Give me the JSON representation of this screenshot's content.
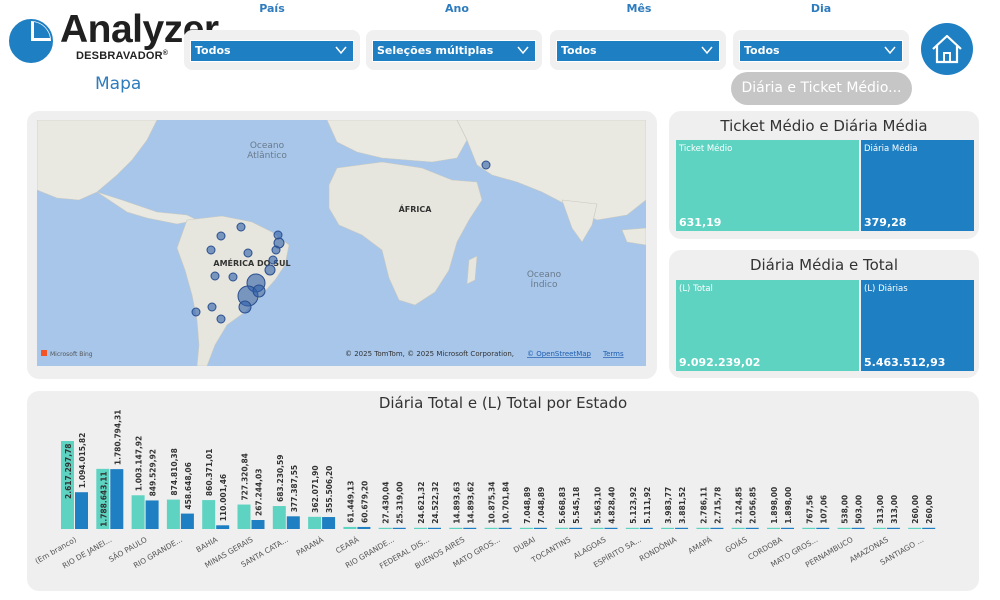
{
  "logo": {
    "title": "Analyzer",
    "subtitle": "DESBRAVADOR",
    "registered": "®"
  },
  "page": {
    "title": "Mapa"
  },
  "filters": [
    {
      "label": "País",
      "value": "Todos"
    },
    {
      "label": "Ano",
      "value": "Seleções múltiplas"
    },
    {
      "label": "Mês",
      "value": "Todos"
    },
    {
      "label": "Dia",
      "value": "Todos"
    }
  ],
  "nav": {
    "pill_label": "Diária e Ticket Médio..."
  },
  "map": {
    "labels": {
      "atlantic": "Oceano\nAtlântico",
      "africa": "ÁFRICA",
      "south_america": "AMÉRICA DO SUL",
      "indian": "Oceano\nÍndico"
    },
    "bing": "Microsoft Bing",
    "copyright": "© 2025 TomTom, © 2025 Microsoft Corporation,",
    "osm": "© OpenStreetMap",
    "terms": "Terms"
  },
  "ticket_card": {
    "title": "Ticket Médio e Diária Média",
    "tiles": [
      {
        "label": "Ticket Médio",
        "value": "631,19"
      },
      {
        "label": "Diária Média",
        "value": "379,28"
      }
    ]
  },
  "total_card": {
    "title": "Diária Média e Total",
    "tiles": [
      {
        "label": "(L) Total",
        "value": "9.092.239,02"
      },
      {
        "label": "(L) Diárias",
        "value": "5.463.512,93"
      }
    ]
  },
  "colors": {
    "accent": "#1e7fc3",
    "teal": "#5fd3c2",
    "panel": "#efefef"
  },
  "chart_data": {
    "type": "bar",
    "title": "Diária Total e (L) Total por Estado",
    "categories": [
      "(Em branco)",
      "RIO DE JANEI...",
      "SÃO PAULO",
      "RIO GRANDE...",
      "BAHIA",
      "MINAS GERAIS",
      "SANTA CATA...",
      "PARANÁ",
      "CEARÁ",
      "RIO GRANDE...",
      "FEDERAL DIS...",
      "BUENOS AIRES",
      "MATO GROS...",
      "DUBAI",
      "TOCANTINS",
      "ALAGOAS",
      "ESPÍRITO SA...",
      "RONDÔNIA",
      "AMAPÁ",
      "GOIÁS",
      "CORDOBA",
      "MATO GROS...",
      "PERNAMBUCO",
      "AMAZONAS",
      "SANTIAGO ..."
    ],
    "series": [
      {
        "values": [
          2617297.78,
          1788643.11,
          1003147.92,
          874810.38,
          860371.01,
          727320.84,
          683230.59,
          362071.9,
          61449.13,
          27430.04,
          24621.32,
          14893.63,
          10875.34,
          7048.89,
          5668.83,
          5563.1,
          5123.92,
          3983.77,
          2786.11,
          2124.85,
          1898.0,
          767.56,
          538.0,
          313.0,
          260.0
        ],
        "labels": [
          "2.617.297,78",
          "1.788.643,11",
          "1.003.147,92",
          "874.810,38",
          "860.371,01",
          "727.320,84",
          "683.230,59",
          "362.071,90",
          "61.449,13",
          "27.430,04",
          "24.621,32",
          "14.893,63",
          "10.875,34",
          "7.048,89",
          "5.668,83",
          "5.563,10",
          "5.123,92",
          "3.983,77",
          "2.786,11",
          "2.124,85",
          "1.898,00",
          "767,56",
          "538,00",
          "313,00",
          "260,00"
        ]
      },
      {
        "values": [
          1094015.82,
          1780794.31,
          849529.92,
          458648.06,
          110001.46,
          267244.03,
          377387.55,
          355506.2,
          60679.2,
          25319.0,
          24522.32,
          14893.62,
          10701.84,
          7048.89,
          5545.18,
          4828.4,
          5111.92,
          3881.52,
          2715.78,
          2056.85,
          1898.0,
          107.06,
          503.0,
          313.0,
          260.0
        ],
        "labels": [
          "1.094.015,82",
          "1.780.794,31",
          "849.529,92",
          "458.648,06",
          "110.001,46",
          "267.244,03",
          "377.387,55",
          "355.506,20",
          "60.679,20",
          "25.319,00",
          "24.522,32",
          "14.893,62",
          "10.701,84",
          "7.048,89",
          "5.545,18",
          "4.828,40",
          "5.111,92",
          "3.881,52",
          "2.715,78",
          "2.056,85",
          "1.898,00",
          "107,06",
          "503,00",
          "313,00",
          "260,00"
        ]
      }
    ],
    "colors": [
      "#5fd3c2",
      "#1e7fc3"
    ],
    "ylim": [
      0,
      2617297.78
    ]
  }
}
